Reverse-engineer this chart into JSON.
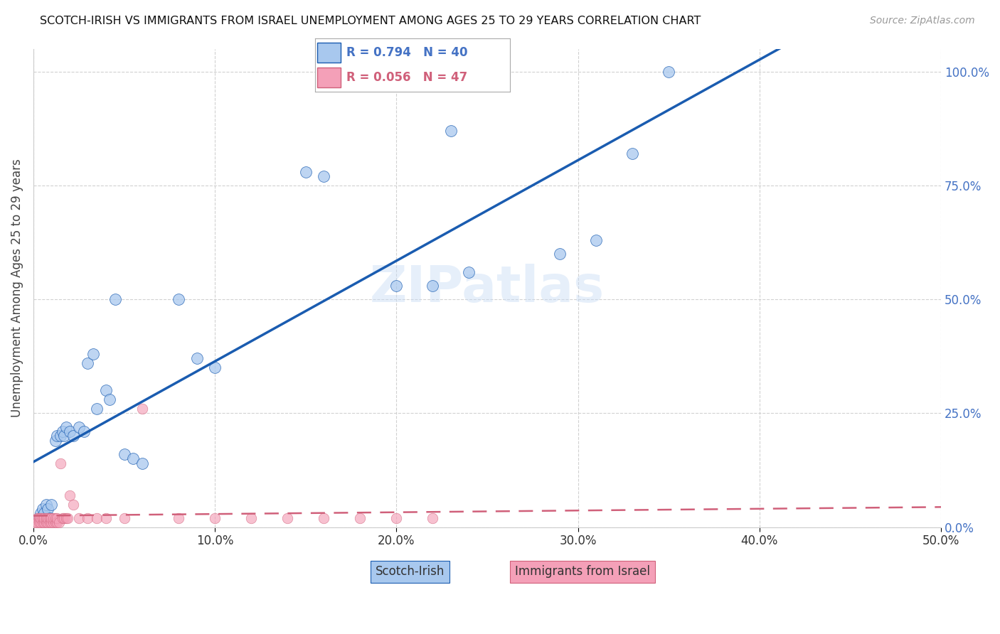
{
  "title": "SCOTCH-IRISH VS IMMIGRANTS FROM ISRAEL UNEMPLOYMENT AMONG AGES 25 TO 29 YEARS CORRELATION CHART",
  "source": "Source: ZipAtlas.com",
  "ylabel": "Unemployment Among Ages 25 to 29 years",
  "legend_label1": "Scotch-Irish",
  "legend_label2": "Immigrants from Israel",
  "R1": 0.794,
  "N1": 40,
  "R2": 0.056,
  "N2": 47,
  "color_blue": "#A8C8EE",
  "color_pink": "#F4A0B8",
  "line_blue": "#1A5CB0",
  "line_pink": "#D0607A",
  "xlim": [
    0.0,
    0.5
  ],
  "ylim": [
    0.0,
    1.05
  ],
  "xticks": [
    0.0,
    0.1,
    0.2,
    0.3,
    0.4,
    0.5
  ],
  "yticks": [
    0.0,
    0.25,
    0.5,
    0.75,
    1.0
  ],
  "blue_x": [
    0.003,
    0.004,
    0.005,
    0.006,
    0.007,
    0.008,
    0.009,
    0.01,
    0.012,
    0.013,
    0.015,
    0.016,
    0.017,
    0.018,
    0.02,
    0.022,
    0.025,
    0.028,
    0.03,
    0.033,
    0.035,
    0.04,
    0.042,
    0.045,
    0.05,
    0.055,
    0.06,
    0.08,
    0.09,
    0.1,
    0.15,
    0.16,
    0.2,
    0.22,
    0.23,
    0.24,
    0.29,
    0.31,
    0.33,
    0.35
  ],
  "blue_y": [
    0.02,
    0.03,
    0.04,
    0.03,
    0.05,
    0.04,
    0.02,
    0.05,
    0.19,
    0.2,
    0.2,
    0.21,
    0.2,
    0.22,
    0.21,
    0.2,
    0.22,
    0.21,
    0.36,
    0.38,
    0.26,
    0.3,
    0.28,
    0.5,
    0.16,
    0.15,
    0.14,
    0.5,
    0.37,
    0.35,
    0.78,
    0.77,
    0.53,
    0.53,
    0.87,
    0.56,
    0.6,
    0.63,
    0.82,
    1.0
  ],
  "pink_x": [
    0.001,
    0.002,
    0.002,
    0.003,
    0.003,
    0.004,
    0.004,
    0.005,
    0.005,
    0.006,
    0.006,
    0.007,
    0.007,
    0.008,
    0.008,
    0.009,
    0.009,
    0.01,
    0.01,
    0.011,
    0.011,
    0.012,
    0.012,
    0.013,
    0.013,
    0.014,
    0.015,
    0.016,
    0.017,
    0.018,
    0.019,
    0.02,
    0.022,
    0.025,
    0.03,
    0.035,
    0.04,
    0.05,
    0.06,
    0.08,
    0.1,
    0.12,
    0.14,
    0.16,
    0.18,
    0.2,
    0.22
  ],
  "pink_y": [
    0.01,
    0.02,
    0.01,
    0.02,
    0.01,
    0.01,
    0.02,
    0.01,
    0.02,
    0.01,
    0.02,
    0.01,
    0.02,
    0.01,
    0.02,
    0.01,
    0.02,
    0.01,
    0.02,
    0.01,
    0.02,
    0.01,
    0.02,
    0.01,
    0.02,
    0.01,
    0.14,
    0.02,
    0.02,
    0.02,
    0.02,
    0.07,
    0.05,
    0.02,
    0.02,
    0.02,
    0.02,
    0.02,
    0.26,
    0.02,
    0.02,
    0.02,
    0.02,
    0.02,
    0.02,
    0.02,
    0.02
  ]
}
